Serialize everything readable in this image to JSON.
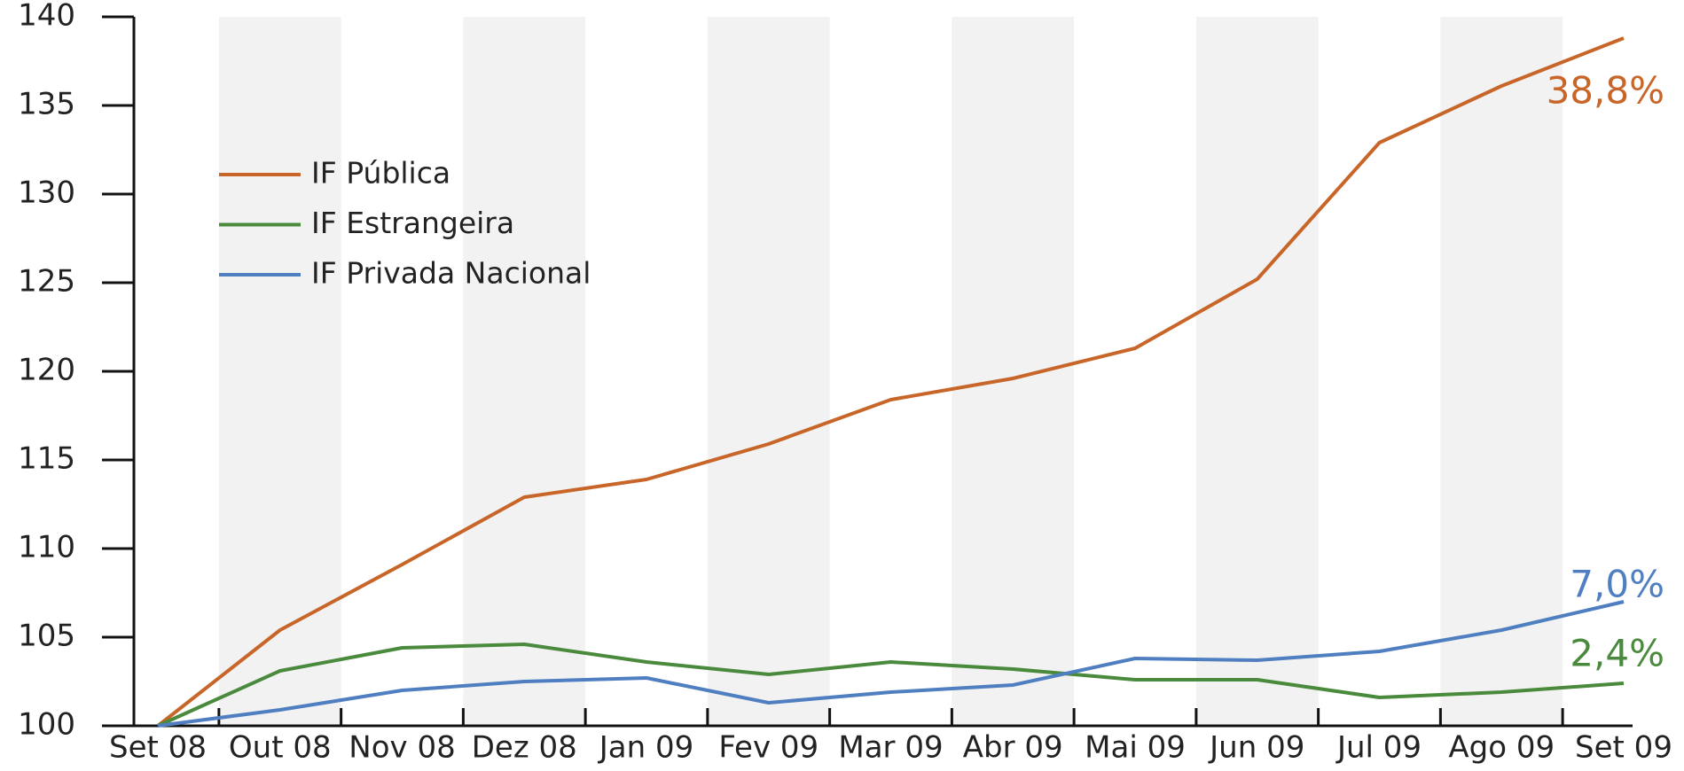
{
  "chart_data": {
    "type": "line",
    "categories": [
      "Set 08",
      "Out 08",
      "Nov 08",
      "Dez 08",
      "Jan 09",
      "Fev 09",
      "Mar 09",
      "Abr 09",
      "Mai 09",
      "Jun 09",
      "Jul 09",
      "Ago 09",
      "Set 09"
    ],
    "series": [
      {
        "name": "IF Pública",
        "color": "#c8662a",
        "annotation": "38,8%",
        "values": [
          100,
          105.4,
          109.1,
          112.9,
          113.9,
          115.9,
          118.4,
          119.6,
          121.3,
          125.2,
          132.9,
          136.1,
          138.8
        ]
      },
      {
        "name": "IF Estrangeira",
        "color": "#4a8a3c",
        "annotation": "2,4%",
        "values": [
          100,
          103.1,
          104.4,
          104.6,
          103.6,
          102.9,
          103.6,
          103.2,
          102.6,
          102.6,
          101.6,
          101.9,
          102.4
        ]
      },
      {
        "name": "IF Privada Nacional",
        "color": "#4f7fc0",
        "annotation": "7,0%",
        "values": [
          100,
          100.9,
          102.0,
          102.5,
          102.7,
          101.3,
          101.9,
          102.3,
          103.8,
          103.7,
          104.2,
          105.4,
          107.0
        ]
      }
    ],
    "ylim": [
      100,
      140
    ],
    "yticks": [
      100,
      105,
      110,
      115,
      120,
      125,
      130,
      135,
      140
    ],
    "shading": "#f2f2f2"
  }
}
